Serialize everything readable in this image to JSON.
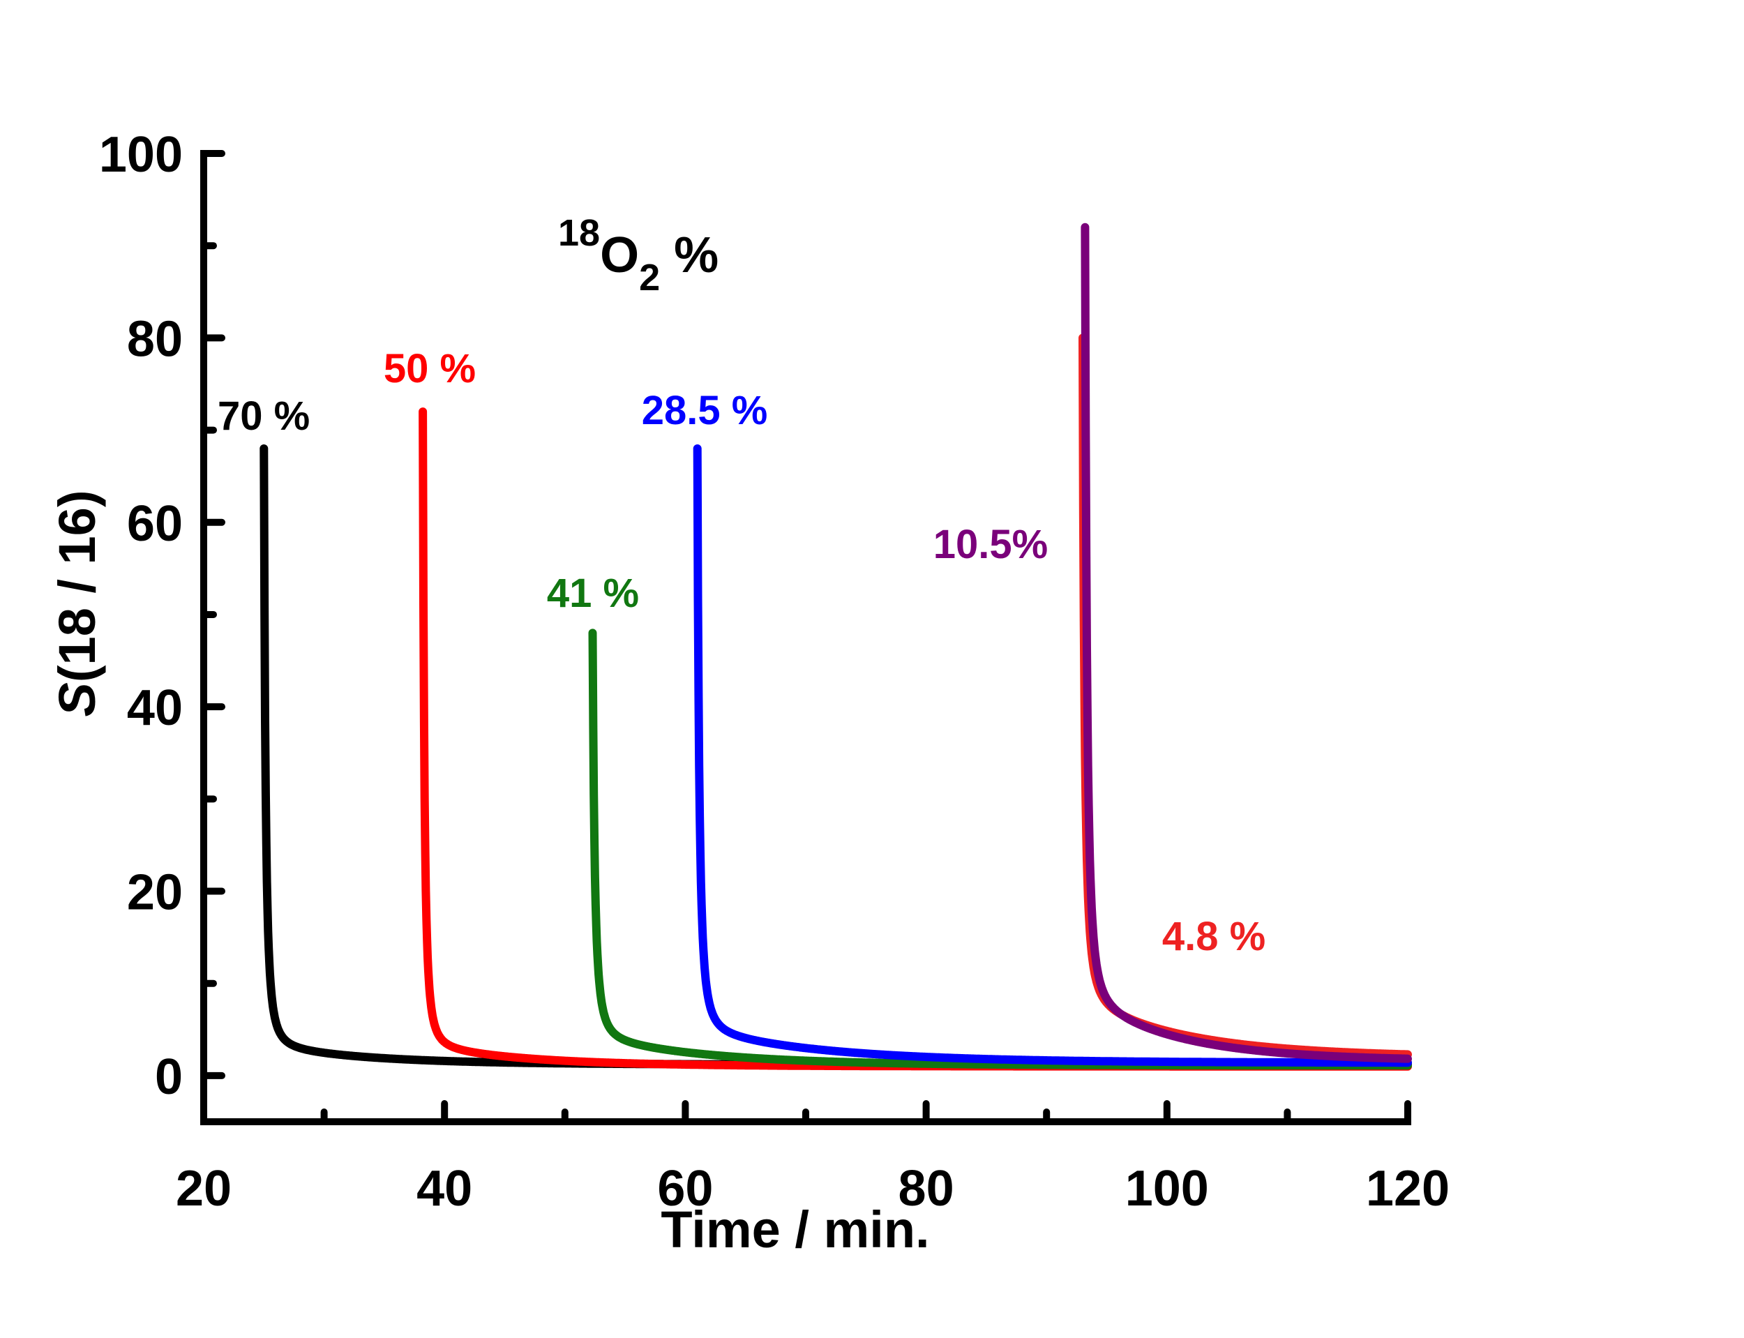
{
  "chart_data": {
    "type": "line",
    "title": "",
    "xlabel": "Time / min.",
    "ylabel_italic": "S",
    "ylabel_rest": "(18 / 16)",
    "xlim": [
      20,
      120
    ],
    "ylim": [
      -5,
      100
    ],
    "x_ticks": [
      20,
      40,
      60,
      80,
      100,
      120
    ],
    "x_tick_labels": [
      "20",
      "40",
      "60",
      "80",
      "100",
      "120"
    ],
    "x_minor_ticks": [
      30,
      50,
      70,
      90,
      110
    ],
    "y_ticks": [
      0,
      20,
      40,
      60,
      80,
      100
    ],
    "y_tick_labels": [
      "0",
      "20",
      "40",
      "60",
      "80",
      "100"
    ],
    "y_minor_ticks": [
      10,
      30,
      50,
      70,
      90
    ],
    "grid": false,
    "annotation": {
      "sup": "18",
      "main": "O",
      "sub": "2",
      "suffix": " %"
    },
    "series": [
      {
        "name": "70 %",
        "color": "#000000",
        "t0": 25.0,
        "peak": 68,
        "tau": 0.9,
        "base": 1.2,
        "slow_amp": 2.0,
        "slow_tau": 9.0,
        "end": 120
      },
      {
        "name": "50 %",
        "color": "#ff0000",
        "t0": 38.2,
        "peak": 72,
        "tau": 0.8,
        "base": 1.0,
        "slow_amp": 2.2,
        "slow_tau": 9.0,
        "end": 120
      },
      {
        "name": "41 %",
        "color": "#117711",
        "t0": 52.3,
        "peak": 48,
        "tau": 1.1,
        "base": 1.1,
        "slow_amp": 3.0,
        "slow_tau": 10.0,
        "end": 120
      },
      {
        "name": "28.5 %",
        "color": "#0000ff",
        "t0": 61.0,
        "peak": 68,
        "tau": 1.0,
        "base": 1.4,
        "slow_amp": 3.5,
        "slow_tau": 11.0,
        "end": 120
      },
      {
        "name": "4.8 %",
        "color": "#ee2222",
        "t0": 93.0,
        "peak": 80,
        "tau": 1.0,
        "base": 2.0,
        "slow_amp": 6.0,
        "slow_tau": 9.0,
        "end": 120
      },
      {
        "name": "10.5%",
        "color": "#7a007a",
        "t0": 93.2,
        "peak": 92,
        "tau": 1.0,
        "base": 1.6,
        "slow_amp": 6.5,
        "slow_tau": 8.0,
        "end": 120
      }
    ]
  }
}
